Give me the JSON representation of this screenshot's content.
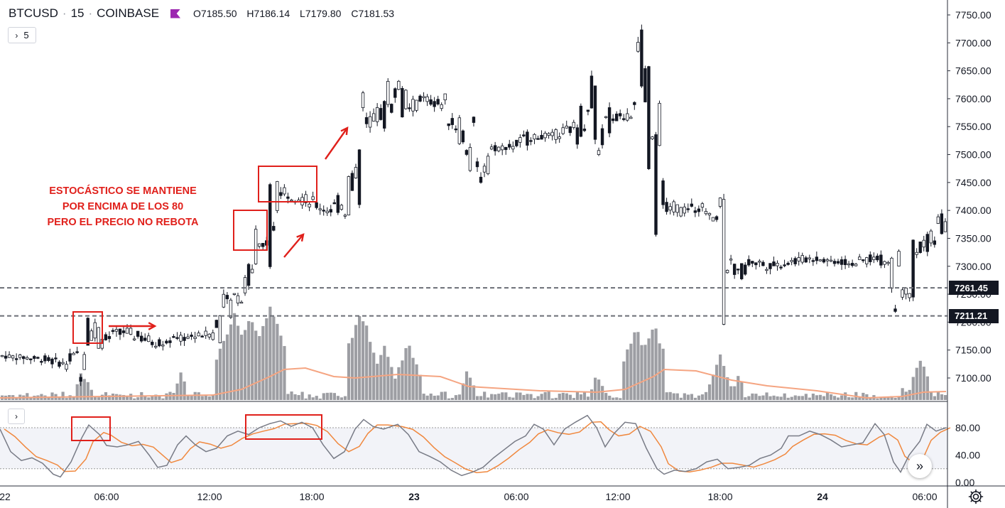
{
  "header": {
    "symbol": "BTCUSD",
    "interval": "15",
    "exchange": "COINBASE",
    "ohlc": {
      "open": "O7185.50",
      "high": "H7186.14",
      "low": "L7179.80",
      "close": "C7181.53"
    }
  },
  "indicator_toggle": {
    "count": "5"
  },
  "annotation": {
    "lines": [
      "ESTOCÁSTICO SE MANTIENE",
      "POR ENCIMA DE LOS 80",
      "PERO EL PRECIO NO REBOTA"
    ]
  },
  "price_axis": {
    "labels": [
      "7750.00",
      "7700.00",
      "7650.00",
      "7600.00",
      "7550.00",
      "7500.00",
      "7450.00",
      "7400.00",
      "7350.00",
      "7300.00",
      "7250.00",
      "7200.00",
      "7150.00",
      "7100.00"
    ]
  },
  "horizontal_lines": [
    {
      "price": 7261.45,
      "label": "7261.45"
    },
    {
      "price": 7211.21,
      "label": "7211.21"
    }
  ],
  "oscillator_axis": {
    "labels": [
      "80.00",
      "40.00",
      "0.00"
    ],
    "upper_band": 80,
    "lower_band": 20
  },
  "time_axis": {
    "labels": [
      "22",
      "06:00",
      "12:00",
      "18:00",
      "23",
      "06:00",
      "12:00",
      "18:00",
      "24",
      "06:00"
    ]
  },
  "colors": {
    "candle": "#131722",
    "volume": "#9d9ea3",
    "volume_ma": "#f5a582",
    "stoch_k": "#787b86",
    "stoch_d": "#f0883e",
    "annotation": "#e0201b",
    "hline": "#787b86"
  },
  "icons": {
    "scroll": "double-chevron-right-icon",
    "settings": "gear-icon"
  }
}
